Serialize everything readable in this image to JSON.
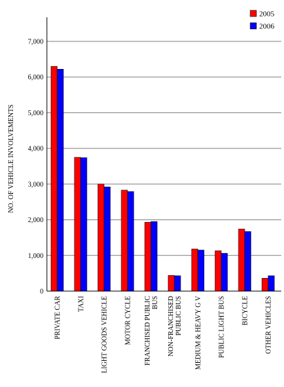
{
  "chart_data": {
    "type": "bar",
    "ylabel": "NO. OF VEHICLE INVOLVEMENTS",
    "xlabel": "",
    "ylim": [
      0,
      7000
    ],
    "yticks": [
      0,
      1000,
      2000,
      3000,
      4000,
      5000,
      6000,
      7000
    ],
    "ytick_labels": [
      "0",
      "1,000",
      "2,000",
      "3,000",
      "4,000",
      "5,000",
      "6,000",
      "7,000"
    ],
    "grid": true,
    "legend_position": "top-right",
    "categories": [
      [
        "PRIVATE CAR"
      ],
      [
        "TAXI"
      ],
      [
        "LIGHT GOODS VEHICLE"
      ],
      [
        "MOTOR CYCLE"
      ],
      [
        "FRANCHISED PUBLIC",
        "BUS"
      ],
      [
        "NON-FRANCHISED",
        "PUBLIC BUS"
      ],
      [
        "MEDIUM & HEAVY G V"
      ],
      [
        "PUBLIC LIGHT BUS"
      ],
      [
        "BICYCLE"
      ],
      [
        "OTHER VEHICLES"
      ]
    ],
    "series": [
      {
        "name": "2005",
        "color": "#ff0000",
        "values": [
          6300,
          3750,
          3000,
          2830,
          1930,
          440,
          1180,
          1130,
          1740,
          360
        ]
      },
      {
        "name": "2006",
        "color": "#0000ff",
        "values": [
          6220,
          3740,
          2920,
          2790,
          1950,
          430,
          1150,
          1060,
          1670,
          430
        ]
      }
    ]
  }
}
